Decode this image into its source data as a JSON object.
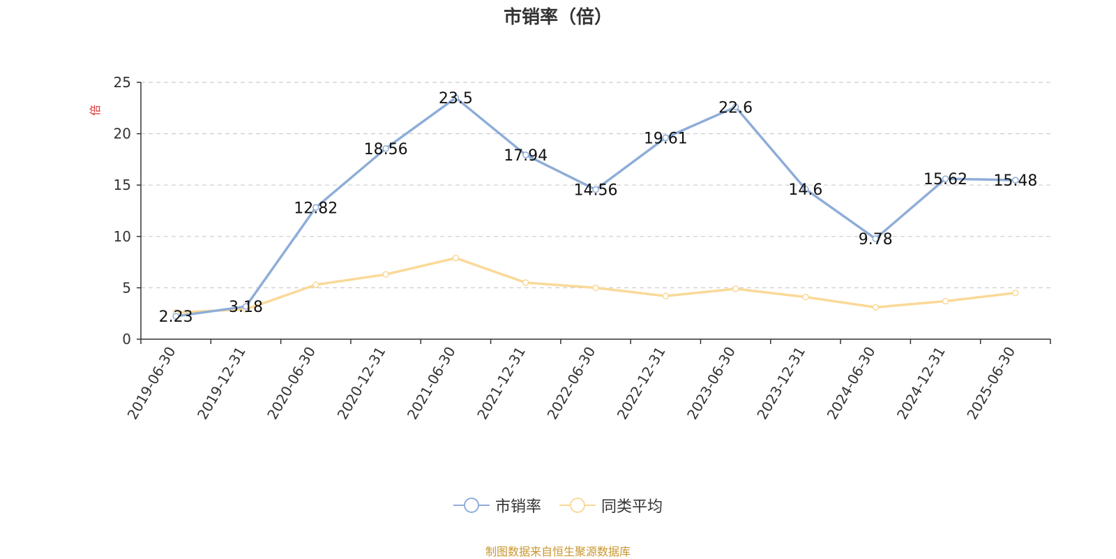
{
  "chart_data": {
    "type": "line",
    "title": "市销率（倍）",
    "ylabel": "倍",
    "xlabel": "",
    "categories": [
      "2019-06-30",
      "2019-12-31",
      "2020-06-30",
      "2020-12-31",
      "2021-06-30",
      "2021-12-31",
      "2022-06-30",
      "2022-12-31",
      "2023-06-30",
      "2023-12-31",
      "2024-06-30",
      "2024-12-31",
      "2025-06-30"
    ],
    "ylim": [
      0,
      25
    ],
    "yticks": [
      "0",
      "5",
      "10",
      "15",
      "20",
      "25"
    ],
    "grid": true,
    "legend_position": "bottom-center",
    "series": [
      {
        "name": "市销率",
        "color": "#8eadd8",
        "values": [
          2.23,
          3.18,
          12.82,
          18.56,
          23.5,
          17.94,
          14.56,
          19.61,
          22.6,
          14.6,
          9.78,
          15.62,
          15.48
        ],
        "labels": [
          "2.23",
          "3.18",
          "12.82",
          "18.56",
          "23.5",
          "17.94",
          "14.56",
          "19.61",
          "22.6",
          "14.6",
          "9.78",
          "15.62",
          "15.48"
        ]
      },
      {
        "name": "同类平均",
        "color": "#fad998",
        "values": [
          2.6,
          2.9,
          5.3,
          6.3,
          7.9,
          5.5,
          5.0,
          4.2,
          4.9,
          4.1,
          3.1,
          3.7,
          4.5
        ]
      }
    ]
  },
  "source_note": "制图数据来自恒生聚源数据库"
}
